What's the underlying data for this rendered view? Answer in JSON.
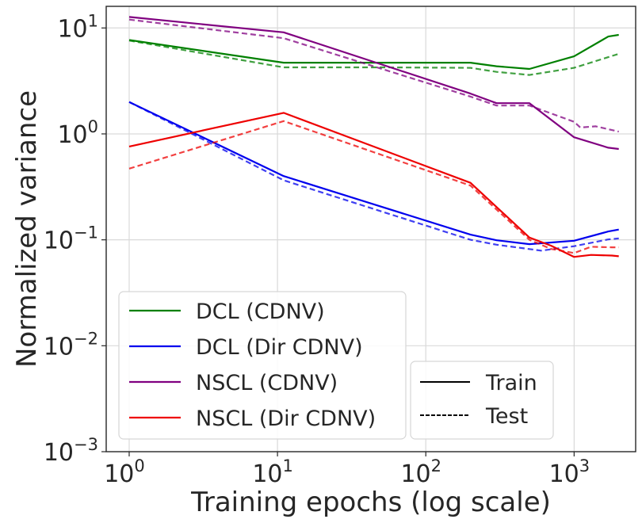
{
  "chart_data": {
    "type": "line",
    "xscale": "log",
    "yscale": "log",
    "xlabel": "Training epochs (log scale)",
    "ylabel": "Normalized variance",
    "xlim": [
      0.7,
      2600
    ],
    "ylim": [
      0.001,
      16
    ],
    "grid": true,
    "x_ticks": [
      {
        "value": 1,
        "base": "10",
        "exp": "0"
      },
      {
        "value": 10,
        "base": "10",
        "exp": "1"
      },
      {
        "value": 100,
        "base": "10",
        "exp": "2"
      },
      {
        "value": 1000,
        "base": "10",
        "exp": "3"
      }
    ],
    "y_ticks": [
      {
        "value": 0.001,
        "base": "10",
        "exp": "−3"
      },
      {
        "value": 0.01,
        "base": "10",
        "exp": "−2"
      },
      {
        "value": 0.1,
        "base": "10",
        "exp": "−1"
      },
      {
        "value": 1,
        "base": "10",
        "exp": "0"
      },
      {
        "value": 10,
        "base": "10",
        "exp": "1"
      }
    ],
    "series": [
      {
        "name": "DCL (CDNV)",
        "color": "#008000",
        "split": "Train",
        "x": [
          1,
          11,
          50,
          200,
          300,
          500,
          1000,
          1700,
          2000
        ],
        "y": [
          7.7,
          4.7,
          4.7,
          4.7,
          4.35,
          4.1,
          5.4,
          8.3,
          8.6
        ]
      },
      {
        "name": "DCL (CDNV)",
        "color": "#008000",
        "split": "Test",
        "x": [
          1,
          11,
          50,
          200,
          300,
          500,
          1000,
          1700,
          2000
        ],
        "y": [
          7.6,
          4.25,
          4.25,
          4.2,
          3.85,
          3.6,
          4.2,
          5.3,
          5.7
        ]
      },
      {
        "name": "DCL (Dir CDNV)",
        "color": "#0000ee",
        "split": "Train",
        "x": [
          1,
          11,
          200,
          300,
          500,
          1000,
          1700,
          2000
        ],
        "y": [
          2.0,
          0.4,
          0.112,
          0.099,
          0.091,
          0.098,
          0.12,
          0.125
        ]
      },
      {
        "name": "DCL (Dir CDNV)",
        "color": "#0000ee",
        "split": "Test",
        "x": [
          1,
          11,
          200,
          300,
          600,
          1000,
          1700,
          2000
        ],
        "y": [
          2.0,
          0.365,
          0.1,
          0.09,
          0.079,
          0.087,
          0.101,
          0.103
        ]
      },
      {
        "name": "NSCL (CDNV)",
        "color": "#800080",
        "split": "Train",
        "x": [
          1,
          11,
          200,
          300,
          500,
          1000,
          1700,
          2000
        ],
        "y": [
          12.7,
          9.1,
          2.4,
          1.95,
          1.95,
          0.93,
          0.74,
          0.72
        ]
      },
      {
        "name": "NSCL (CDNV)",
        "color": "#800080",
        "split": "Test",
        "x": [
          1,
          11,
          200,
          300,
          500,
          1000,
          1100,
          1400,
          2000
        ],
        "y": [
          12.0,
          8.0,
          2.25,
          1.85,
          1.85,
          1.3,
          1.15,
          1.18,
          1.05
        ]
      },
      {
        "name": "NSCL (Dir CDNV)",
        "color": "#ee0000",
        "split": "Train",
        "x": [
          1,
          11,
          200,
          500,
          700,
          1000,
          1300,
          1800,
          2000
        ],
        "y": [
          0.76,
          1.58,
          0.345,
          0.105,
          0.088,
          0.069,
          0.072,
          0.071,
          0.07
        ]
      },
      {
        "name": "NSCL (Dir CDNV)",
        "color": "#ee0000",
        "split": "Test",
        "x": [
          1,
          11,
          200,
          500,
          700,
          1000,
          1300,
          1800,
          2000
        ],
        "y": [
          0.47,
          1.32,
          0.325,
          0.1,
          0.082,
          0.075,
          0.086,
          0.085,
          0.085
        ]
      }
    ],
    "legend_methods": {
      "placement": "lower-left",
      "entries": [
        {
          "label": "DCL (CDNV)",
          "color": "#008000"
        },
        {
          "label": "DCL (Dir CDNV)",
          "color": "#0000ee"
        },
        {
          "label": "NSCL (CDNV)",
          "color": "#800080"
        },
        {
          "label": "NSCL (Dir CDNV)",
          "color": "#ee0000"
        }
      ]
    },
    "legend_split": {
      "placement": "lower-center",
      "entries": [
        {
          "label": "Train",
          "style": "solid",
          "color": "#000000"
        },
        {
          "label": "Test",
          "style": "dashed",
          "color": "#000000"
        }
      ]
    }
  }
}
